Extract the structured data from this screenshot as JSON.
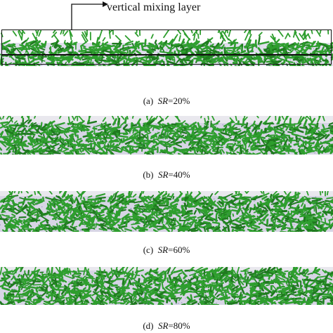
{
  "annotation": {
    "text": "vertical mixing layer"
  },
  "panels": [
    {
      "letter": "(a)",
      "var": "SR",
      "rest": "=20%",
      "fill": 0.5
    },
    {
      "letter": "(b)",
      "var": "SR",
      "rest": "=40%",
      "fill": 0.85
    },
    {
      "letter": "(c)",
      "var": "SR",
      "rest": "=60%",
      "fill": 0.95
    },
    {
      "letter": "(d)",
      "var": "SR",
      "rest": "=80%",
      "fill": 1.0
    }
  ],
  "colors": {
    "fiber": "#2e9e2e",
    "fiber_dark": "#1f7a1f",
    "matrix": "#c9c4de",
    "matrix_dark": "#6b6aa8"
  }
}
